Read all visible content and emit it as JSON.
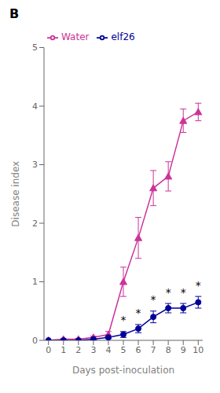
{
  "chart_data": {
    "type": "line",
    "title": "B",
    "x_label": "Days post-inoculation",
    "y_label": "Disease index",
    "x": [
      0,
      1,
      2,
      3,
      4,
      5,
      6,
      7,
      8,
      9,
      10
    ],
    "series": [
      {
        "name": "Water",
        "color": "#cc3399",
        "marker": "triangle",
        "values": [
          0.0,
          0.02,
          0.02,
          0.05,
          0.1,
          1.0,
          1.75,
          2.6,
          2.8,
          3.75,
          3.9
        ],
        "error": [
          0.0,
          0.01,
          0.01,
          0.02,
          0.05,
          0.25,
          0.35,
          0.3,
          0.25,
          0.2,
          0.15
        ]
      },
      {
        "name": "elf26",
        "color": "#000099",
        "marker": "circle",
        "values": [
          0.0,
          0.0,
          0.0,
          0.02,
          0.05,
          0.1,
          0.2,
          0.4,
          0.55,
          0.55,
          0.65
        ],
        "error": [
          0.0,
          0.0,
          0.0,
          0.01,
          0.02,
          0.05,
          0.07,
          0.1,
          0.08,
          0.08,
          0.1
        ]
      }
    ],
    "annotations": [
      {
        "text": "*",
        "x": 5,
        "y": 0.21
      },
      {
        "text": "*",
        "x": 6,
        "y": 0.33
      },
      {
        "text": "*",
        "x": 7,
        "y": 0.56
      },
      {
        "text": "*",
        "x": 8,
        "y": 0.69
      },
      {
        "text": "*",
        "x": 9,
        "y": 0.69
      },
      {
        "text": "*",
        "x": 10,
        "y": 0.81
      }
    ],
    "xlim": [
      -0.3,
      10.3
    ],
    "xticks": [
      0,
      1,
      2,
      3,
      4,
      5,
      6,
      7,
      8,
      9,
      10
    ],
    "ylim": [
      0,
      5
    ],
    "yticks": [
      0,
      1,
      2,
      3,
      4,
      5
    ],
    "grid": false,
    "legend": "upper left"
  }
}
